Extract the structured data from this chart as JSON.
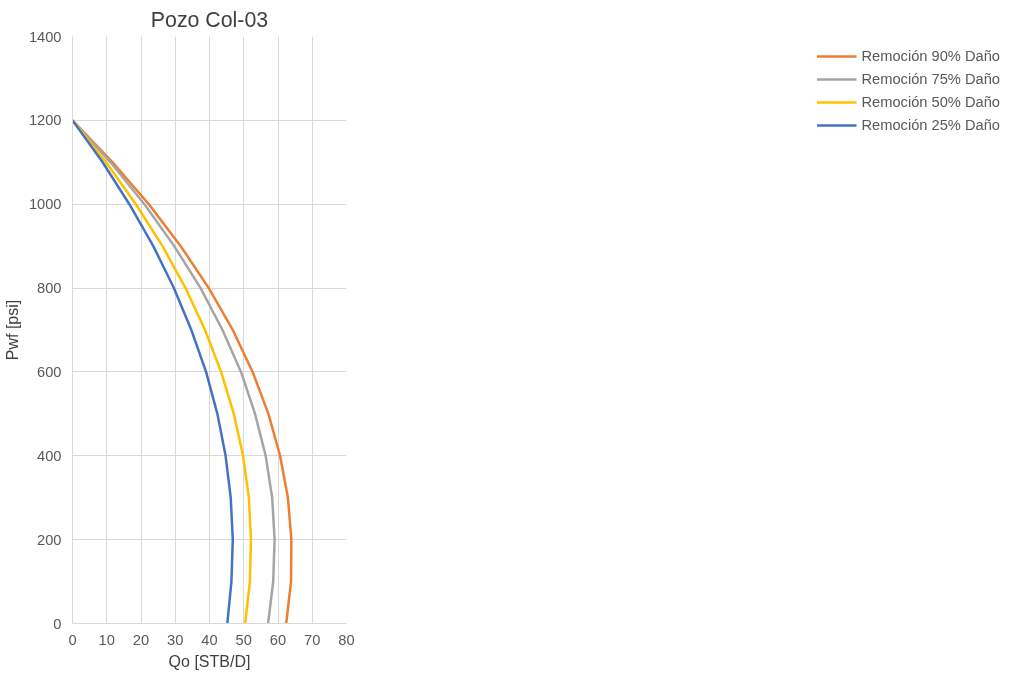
{
  "chart_data": {
    "type": "line",
    "title": "Pozo Col-03",
    "xlabel": "Qo [STB/D]",
    "ylabel": "Pwf [psi]",
    "xlim": [
      0,
      80
    ],
    "xticks": [
      0,
      10,
      20,
      30,
      40,
      50,
      60,
      70,
      80
    ],
    "ylim": [
      0,
      1400
    ],
    "yticks": [
      0,
      200,
      400,
      600,
      800,
      1000,
      1200,
      1400
    ],
    "grid": true,
    "legend": "right",
    "marker": "none",
    "line_style": "solid",
    "series": [
      {
        "name": "Remoción 90% Daño",
        "color": "#ed7d31",
        "x": [
          0,
          11.7,
          22.3,
          31.6,
          39.8,
          46.8,
          52.6,
          57.2,
          60.6,
          62.9,
          63.9,
          63.8,
          62.4
        ],
        "values": [
          1200,
          1100,
          1000,
          900,
          800,
          700,
          600,
          500,
          400,
          300,
          200,
          100,
          0
        ]
      },
      {
        "name": "Remoción 75% Daño",
        "color": "#a5a5a5",
        "x": [
          0,
          11.1,
          21.0,
          29.7,
          37.4,
          43.8,
          49.2,
          53.3,
          56.4,
          58.3,
          59.0,
          58.6,
          57.1
        ],
        "values": [
          1200,
          1100,
          1000,
          900,
          800,
          700,
          600,
          500,
          400,
          300,
          200,
          100,
          0
        ]
      },
      {
        "name": "Remoción 50% Daño",
        "color": "#ffc000",
        "x": [
          0,
          9.8,
          18.5,
          26.3,
          33.0,
          38.7,
          43.4,
          47.1,
          49.8,
          51.5,
          52.1,
          51.8,
          50.4
        ],
        "values": [
          1200,
          1100,
          1000,
          900,
          800,
          700,
          600,
          500,
          400,
          300,
          200,
          100,
          0
        ]
      },
      {
        "name": "Remoción 25% Daño",
        "color": "#4472c4",
        "x": [
          0,
          8.8,
          16.6,
          23.6,
          29.6,
          34.7,
          39.0,
          42.3,
          44.7,
          46.2,
          46.8,
          46.4,
          45.2
        ],
        "values": [
          1200,
          1100,
          1000,
          900,
          800,
          700,
          600,
          500,
          400,
          300,
          200,
          100,
          0
        ]
      }
    ]
  }
}
